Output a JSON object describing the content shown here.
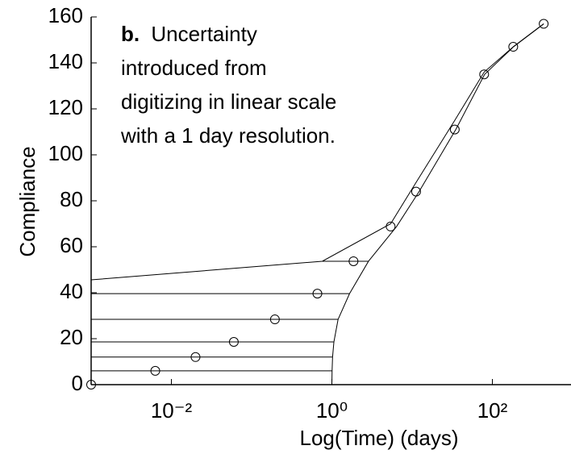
{
  "chart_data": {
    "type": "scatter",
    "ylabel": "Compliance",
    "xlabel": "Log(Time) (days)",
    "annotation": {
      "label": "b.",
      "lines": [
        "Uncertainty",
        "introduced from",
        "digitizing in linear scale",
        "with a 1 day resolution."
      ]
    },
    "xscale": "log",
    "xlim": [
      0.001,
      1000
    ],
    "ylim": [
      0,
      160
    ],
    "xticks": [
      {
        "value": 0.01,
        "label": "10⁻²"
      },
      {
        "value": 1,
        "label": "10⁰"
      },
      {
        "value": 100,
        "label": "10²"
      }
    ],
    "yticks": [
      0,
      20,
      40,
      60,
      80,
      100,
      120,
      140,
      160
    ],
    "color": "#000000",
    "series": [
      {
        "type": "scatter",
        "x": [
          0.001,
          0.0063,
          0.02,
          0.06,
          0.195,
          0.66,
          1.86,
          5.4,
          11.2,
          34,
          79,
          182,
          436
        ],
        "values": [
          0,
          6,
          12,
          18.6,
          28.4,
          39.6,
          53.7,
          68.8,
          84,
          111,
          135,
          147,
          157
        ]
      },
      {
        "type": "line",
        "x": [
          1.0,
          1.0063,
          1.02,
          1.06,
          1.195,
          1.66,
          2.86,
          6.4,
          12.2,
          35,
          80,
          183,
          437
        ],
        "values": [
          0,
          6,
          12,
          18.6,
          28.4,
          39.6,
          53.7,
          68.8,
          84,
          111,
          135,
          147,
          157
        ]
      },
      {
        "type": "line",
        "x": [
          0.001,
          0.76,
          5.4,
          11.2,
          34,
          79,
          182,
          436
        ],
        "values": [
          45.6,
          53.7,
          70,
          88,
          115,
          136,
          147,
          157
        ]
      }
    ],
    "segments": [
      {
        "x": [
          0.001,
          1.0063
        ],
        "y": 6
      },
      {
        "x": [
          0.001,
          1.02
        ],
        "y": 12
      },
      {
        "x": [
          0.001,
          1.06
        ],
        "y": 18.6
      },
      {
        "x": [
          0.001,
          1.195
        ],
        "y": 28.4
      },
      {
        "x": [
          0.001,
          1.66
        ],
        "y": 39.6
      },
      {
        "x": [
          0.76,
          2.86
        ],
        "y": 53.7
      }
    ]
  }
}
